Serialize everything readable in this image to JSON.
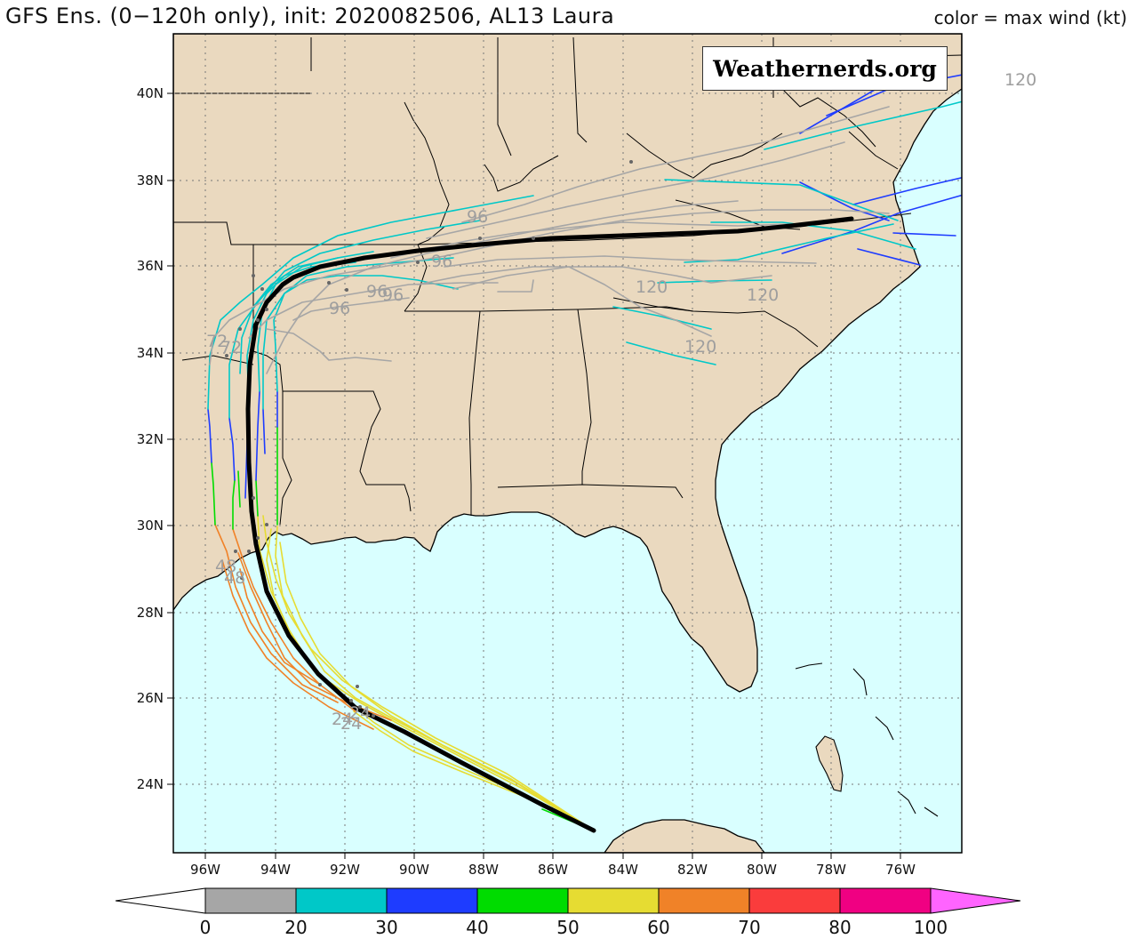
{
  "header": {
    "title": "GFS Ens. (0−120h only), init: 2020082506, AL13 Laura",
    "subtitle": "color = max wind (kt)"
  },
  "brand": {
    "text": "Weathernerds.org"
  },
  "axes": {
    "lat_labels": [
      "40N",
      "38N",
      "36N",
      "34N",
      "32N",
      "30N",
      "28N",
      "26N",
      "24N"
    ],
    "lon_labels": [
      "96W",
      "94W",
      "92W",
      "90W",
      "88W",
      "86W",
      "84W",
      "82W",
      "80W",
      "78W",
      "76W"
    ]
  },
  "hour_labels": [
    {
      "text": "120",
      "color": "#9e9e9e"
    },
    {
      "text": "120",
      "color": "#9e9e9e"
    },
    {
      "text": "120",
      "color": "#9e9e9e"
    },
    {
      "text": "120",
      "color": "#9e9e9e"
    },
    {
      "text": "96",
      "color": "#9e9e9e"
    },
    {
      "text": "96",
      "color": "#9e9e9e"
    },
    {
      "text": "96",
      "color": "#9e9e9e"
    },
    {
      "text": "96",
      "color": "#9e9e9e"
    },
    {
      "text": "96",
      "color": "#9e9e9e"
    },
    {
      "text": "72",
      "color": "#9e9e9e"
    },
    {
      "text": "72",
      "color": "#9e9e9e"
    },
    {
      "text": "48",
      "color": "#9e9e9e"
    },
    {
      "text": "48",
      "color": "#9e9e9e"
    },
    {
      "text": "24",
      "color": "#9e9e9e"
    },
    {
      "text": "24",
      "color": "#9e9e9e"
    },
    {
      "text": "24",
      "color": "#9e9e9e"
    }
  ],
  "colorbar": {
    "labels": [
      "0",
      "20",
      "30",
      "40",
      "50",
      "60",
      "70",
      "80",
      "100"
    ],
    "colors": [
      "#a6a6a6",
      "#00c8c8",
      "#1e3cff",
      "#00dc00",
      "#e6dc32",
      "#f08228",
      "#fa3c3c",
      "#f00082",
      "#ff64ff"
    ]
  },
  "colors": {
    "land": "#ead9bf",
    "ocean": "#d9ffff",
    "consensus_track": "#000000"
  }
}
